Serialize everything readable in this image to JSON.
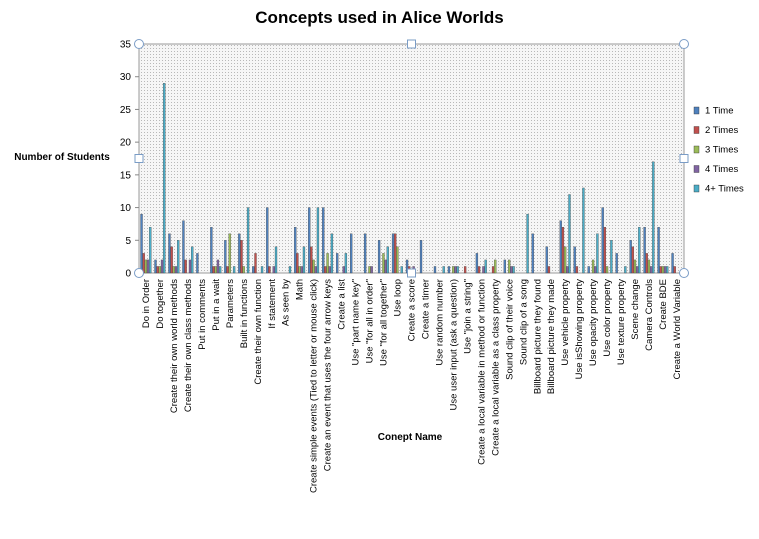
{
  "chart_data": {
    "type": "bar",
    "title": "Concepts used in Alice Worlds",
    "xlabel": "Conept Name",
    "ylabel": "Number of Students",
    "ylim": [
      0,
      35
    ],
    "yticks": [
      0,
      5,
      10,
      15,
      20,
      25,
      30,
      35
    ],
    "grid": false,
    "legend_position": "right",
    "categories": [
      "Do in Order",
      "Do together",
      "Create their own world methods",
      "Create their own class methods",
      "Put in comments",
      "Put in a wait",
      "Parameters",
      "Built in functions",
      "Create their own function",
      "If statement",
      "As seen by",
      "Math",
      "Create simple events (Tied to letter or mouse click)",
      "Create an event that uses the four arrow keys",
      "Create a list",
      "Use \"part name key\"",
      "Use \"for all in order\"",
      "Use \"for all together\"",
      "Use loop",
      "Create a score",
      "Create a timer",
      "Use random number",
      "Use user input (ask a question)",
      "Use \"join a string\"",
      "Create a local variable in method or function",
      "Create a local variable as a class property",
      "Sound clip of their voice",
      "Sound clip of a song",
      "Billboard picture they found",
      "Billboard picture they made",
      "Use vehicle property",
      "Use isShowing property",
      "Use opacity property",
      "Use color property",
      "Use texture property",
      "Scene change",
      "Camera Controls",
      "Create BDE",
      "Create a World Variable"
    ],
    "series": [
      {
        "name": "1 Time",
        "color": "#4F81BD",
        "values": [
          9,
          2,
          6,
          8,
          3,
          7,
          5,
          6,
          1,
          10,
          0,
          7,
          10,
          10,
          3,
          6,
          6,
          5,
          6,
          2,
          5,
          1,
          1,
          0,
          3,
          0,
          2,
          0,
          6,
          4,
          8,
          4,
          1,
          10,
          3,
          5,
          7,
          7,
          3
        ]
      },
      {
        "name": "2 Times",
        "color": "#C0504D",
        "values": [
          3,
          1,
          4,
          2,
          0,
          1,
          1,
          5,
          3,
          1,
          0,
          3,
          4,
          1,
          0,
          0,
          0,
          0,
          6,
          1,
          0,
          0,
          0,
          1,
          1,
          1,
          0,
          0,
          0,
          1,
          7,
          1,
          0,
          7,
          0,
          4,
          3,
          1,
          1
        ]
      },
      {
        "name": "3 Times",
        "color": "#9BBB59",
        "values": [
          2,
          1,
          1,
          0,
          0,
          1,
          6,
          1,
          0,
          0,
          0,
          1,
          2,
          3,
          0,
          0,
          1,
          3,
          4,
          0,
          0,
          0,
          1,
          0,
          0,
          2,
          2,
          0,
          0,
          0,
          4,
          0,
          2,
          1,
          0,
          2,
          2,
          1,
          0
        ]
      },
      {
        "name": "4 Times",
        "color": "#8064A2",
        "values": [
          2,
          2,
          1,
          2,
          0,
          2,
          0,
          0,
          0,
          1,
          0,
          1,
          1,
          1,
          1,
          0,
          1,
          2,
          0,
          1,
          0,
          0,
          1,
          0,
          1,
          0,
          1,
          0,
          0,
          0,
          1,
          0,
          1,
          0,
          0,
          1,
          1,
          1,
          0
        ]
      },
      {
        "name": "4+ Times",
        "color": "#4BACC6",
        "values": [
          7,
          29,
          5,
          4,
          0,
          1,
          1,
          10,
          1,
          4,
          1,
          4,
          10,
          6,
          3,
          0,
          0,
          4,
          1,
          0,
          0,
          1,
          1,
          0,
          2,
          0,
          1,
          9,
          0,
          0,
          12,
          13,
          6,
          5,
          1,
          7,
          17,
          1,
          0
        ]
      }
    ]
  }
}
